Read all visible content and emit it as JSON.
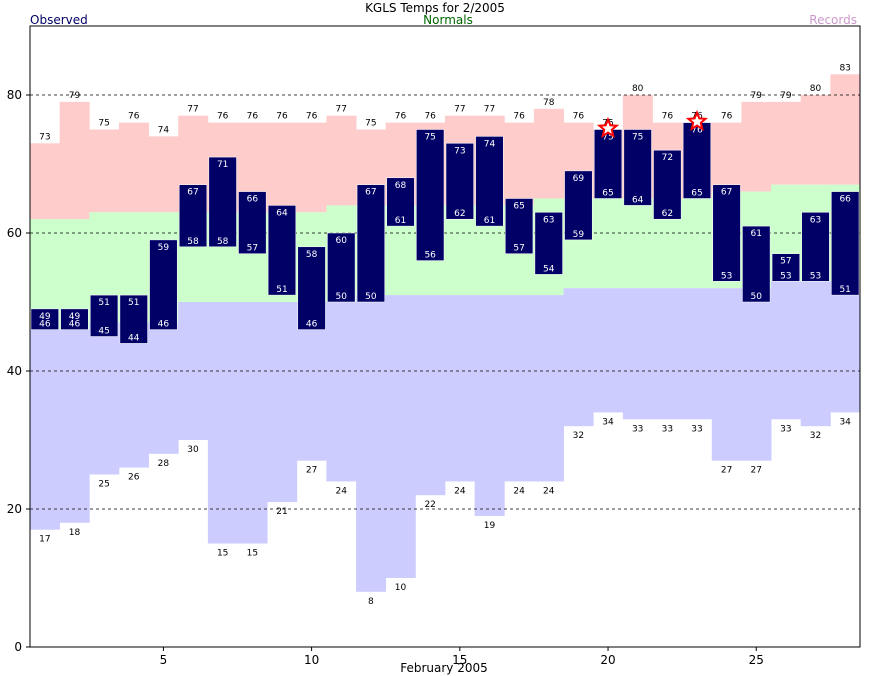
{
  "chart_data": {
    "type": "bar",
    "title": "KGLS Temps for 2/2005",
    "legend": {
      "observed": "Observed",
      "normals": "Normals",
      "records": "Records"
    },
    "xlabel": "February 2005",
    "ylabel": "",
    "xlim": [
      0.5,
      28.5
    ],
    "ylim": [
      0,
      90
    ],
    "x_ticks": [
      5,
      10,
      15,
      20,
      25
    ],
    "y_ticks": [
      0,
      20,
      40,
      60,
      80
    ],
    "grid_y": [
      20,
      40,
      60,
      80
    ],
    "colors": {
      "observed": "#000066",
      "observed_text": "#ffffff",
      "record_band": "#ffcccc",
      "normal_band": "#ccffcc",
      "record_low_band": "#ccccff",
      "star": "#ff0000",
      "normals_label": "#006600",
      "records_label": "#cc99cc",
      "observed_label": "#000066"
    },
    "days": [
      1,
      2,
      3,
      4,
      5,
      6,
      7,
      8,
      9,
      10,
      11,
      12,
      13,
      14,
      15,
      16,
      17,
      18,
      19,
      20,
      21,
      22,
      23,
      24,
      25,
      26,
      27,
      28
    ],
    "series": [
      {
        "name": "Observed",
        "key": "obs_high",
        "values": [
          49,
          49,
          51,
          51,
          59,
          67,
          71,
          66,
          64,
          58,
          60,
          67,
          68,
          75,
          73,
          74,
          65,
          63,
          69,
          75,
          75,
          72,
          76,
          67,
          61,
          57,
          63,
          66
        ]
      },
      {
        "key": "obs_low",
        "values": [
          46,
          46,
          45,
          44,
          46,
          58,
          58,
          57,
          51,
          46,
          50,
          50,
          61,
          56,
          62,
          61,
          57,
          54,
          59,
          65,
          64,
          62,
          65,
          53,
          50,
          53,
          53,
          51
        ]
      },
      {
        "key": "normal_high",
        "values": [
          62,
          62,
          63,
          63,
          63,
          63,
          63,
          63,
          63,
          63,
          64,
          64,
          64,
          64,
          64,
          64,
          64,
          65,
          65,
          65,
          65,
          65,
          65,
          66,
          66,
          67,
          67,
          67
        ]
      },
      {
        "key": "normal_low",
        "values": [
          46,
          46,
          47,
          47,
          47,
          50,
          50,
          50,
          50,
          50,
          50,
          51,
          51,
          51,
          51,
          51,
          51,
          51,
          52,
          52,
          52,
          52,
          52,
          52,
          52,
          53,
          53,
          53
        ]
      },
      {
        "name": "Records",
        "key": "record_high",
        "values": [
          73,
          79,
          75,
          76,
          74,
          77,
          76,
          76,
          76,
          76,
          77,
          75,
          76,
          76,
          77,
          77,
          76,
          78,
          76,
          75,
          80,
          76,
          76,
          76,
          79,
          79,
          80,
          83
        ]
      },
      {
        "key": "record_low",
        "values": [
          17,
          18,
          25,
          26,
          28,
          30,
          15,
          15,
          21,
          27,
          24,
          8,
          10,
          22,
          24,
          19,
          24,
          24,
          32,
          34,
          33,
          33,
          33,
          27,
          27,
          33,
          32,
          34
        ]
      }
    ],
    "record_set_days": [
      20,
      23
    ]
  }
}
